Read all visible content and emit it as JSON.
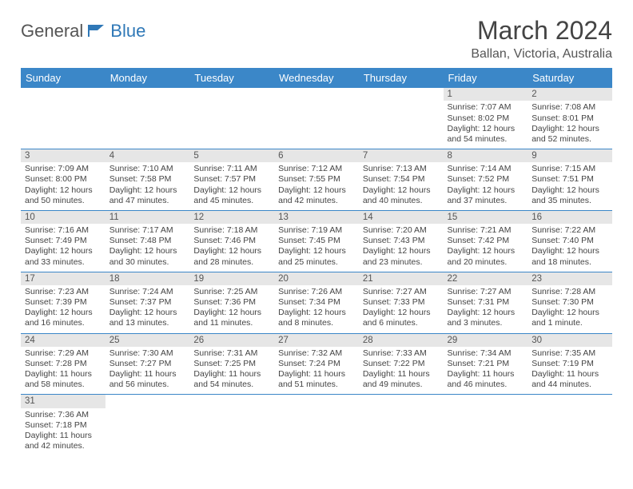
{
  "logo": {
    "word1": "General",
    "word2": "Blue"
  },
  "header": {
    "month_title": "March 2024",
    "location": "Ballan, Victoria, Australia"
  },
  "colors": {
    "header_bg": "#3b87c8",
    "header_fg": "#ffffff",
    "daynum_bg": "#e6e6e6",
    "rule": "#3b87c8",
    "logo_accent": "#2f78b7",
    "text": "#444444"
  },
  "typography": {
    "title_fontsize": 32,
    "location_fontsize": 16,
    "th_fontsize": 13,
    "cell_fontsize": 10.5
  },
  "day_headers": [
    "Sunday",
    "Monday",
    "Tuesday",
    "Wednesday",
    "Thursday",
    "Friday",
    "Saturday"
  ],
  "weeks": [
    [
      null,
      null,
      null,
      null,
      null,
      {
        "n": "1",
        "sr": "Sunrise: 7:07 AM",
        "ss": "Sunset: 8:02 PM",
        "dl": "Daylight: 12 hours and 54 minutes."
      },
      {
        "n": "2",
        "sr": "Sunrise: 7:08 AM",
        "ss": "Sunset: 8:01 PM",
        "dl": "Daylight: 12 hours and 52 minutes."
      }
    ],
    [
      {
        "n": "3",
        "sr": "Sunrise: 7:09 AM",
        "ss": "Sunset: 8:00 PM",
        "dl": "Daylight: 12 hours and 50 minutes."
      },
      {
        "n": "4",
        "sr": "Sunrise: 7:10 AM",
        "ss": "Sunset: 7:58 PM",
        "dl": "Daylight: 12 hours and 47 minutes."
      },
      {
        "n": "5",
        "sr": "Sunrise: 7:11 AM",
        "ss": "Sunset: 7:57 PM",
        "dl": "Daylight: 12 hours and 45 minutes."
      },
      {
        "n": "6",
        "sr": "Sunrise: 7:12 AM",
        "ss": "Sunset: 7:55 PM",
        "dl": "Daylight: 12 hours and 42 minutes."
      },
      {
        "n": "7",
        "sr": "Sunrise: 7:13 AM",
        "ss": "Sunset: 7:54 PM",
        "dl": "Daylight: 12 hours and 40 minutes."
      },
      {
        "n": "8",
        "sr": "Sunrise: 7:14 AM",
        "ss": "Sunset: 7:52 PM",
        "dl": "Daylight: 12 hours and 37 minutes."
      },
      {
        "n": "9",
        "sr": "Sunrise: 7:15 AM",
        "ss": "Sunset: 7:51 PM",
        "dl": "Daylight: 12 hours and 35 minutes."
      }
    ],
    [
      {
        "n": "10",
        "sr": "Sunrise: 7:16 AM",
        "ss": "Sunset: 7:49 PM",
        "dl": "Daylight: 12 hours and 33 minutes."
      },
      {
        "n": "11",
        "sr": "Sunrise: 7:17 AM",
        "ss": "Sunset: 7:48 PM",
        "dl": "Daylight: 12 hours and 30 minutes."
      },
      {
        "n": "12",
        "sr": "Sunrise: 7:18 AM",
        "ss": "Sunset: 7:46 PM",
        "dl": "Daylight: 12 hours and 28 minutes."
      },
      {
        "n": "13",
        "sr": "Sunrise: 7:19 AM",
        "ss": "Sunset: 7:45 PM",
        "dl": "Daylight: 12 hours and 25 minutes."
      },
      {
        "n": "14",
        "sr": "Sunrise: 7:20 AM",
        "ss": "Sunset: 7:43 PM",
        "dl": "Daylight: 12 hours and 23 minutes."
      },
      {
        "n": "15",
        "sr": "Sunrise: 7:21 AM",
        "ss": "Sunset: 7:42 PM",
        "dl": "Daylight: 12 hours and 20 minutes."
      },
      {
        "n": "16",
        "sr": "Sunrise: 7:22 AM",
        "ss": "Sunset: 7:40 PM",
        "dl": "Daylight: 12 hours and 18 minutes."
      }
    ],
    [
      {
        "n": "17",
        "sr": "Sunrise: 7:23 AM",
        "ss": "Sunset: 7:39 PM",
        "dl": "Daylight: 12 hours and 16 minutes."
      },
      {
        "n": "18",
        "sr": "Sunrise: 7:24 AM",
        "ss": "Sunset: 7:37 PM",
        "dl": "Daylight: 12 hours and 13 minutes."
      },
      {
        "n": "19",
        "sr": "Sunrise: 7:25 AM",
        "ss": "Sunset: 7:36 PM",
        "dl": "Daylight: 12 hours and 11 minutes."
      },
      {
        "n": "20",
        "sr": "Sunrise: 7:26 AM",
        "ss": "Sunset: 7:34 PM",
        "dl": "Daylight: 12 hours and 8 minutes."
      },
      {
        "n": "21",
        "sr": "Sunrise: 7:27 AM",
        "ss": "Sunset: 7:33 PM",
        "dl": "Daylight: 12 hours and 6 minutes."
      },
      {
        "n": "22",
        "sr": "Sunrise: 7:27 AM",
        "ss": "Sunset: 7:31 PM",
        "dl": "Daylight: 12 hours and 3 minutes."
      },
      {
        "n": "23",
        "sr": "Sunrise: 7:28 AM",
        "ss": "Sunset: 7:30 PM",
        "dl": "Daylight: 12 hours and 1 minute."
      }
    ],
    [
      {
        "n": "24",
        "sr": "Sunrise: 7:29 AM",
        "ss": "Sunset: 7:28 PM",
        "dl": "Daylight: 11 hours and 58 minutes."
      },
      {
        "n": "25",
        "sr": "Sunrise: 7:30 AM",
        "ss": "Sunset: 7:27 PM",
        "dl": "Daylight: 11 hours and 56 minutes."
      },
      {
        "n": "26",
        "sr": "Sunrise: 7:31 AM",
        "ss": "Sunset: 7:25 PM",
        "dl": "Daylight: 11 hours and 54 minutes."
      },
      {
        "n": "27",
        "sr": "Sunrise: 7:32 AM",
        "ss": "Sunset: 7:24 PM",
        "dl": "Daylight: 11 hours and 51 minutes."
      },
      {
        "n": "28",
        "sr": "Sunrise: 7:33 AM",
        "ss": "Sunset: 7:22 PM",
        "dl": "Daylight: 11 hours and 49 minutes."
      },
      {
        "n": "29",
        "sr": "Sunrise: 7:34 AM",
        "ss": "Sunset: 7:21 PM",
        "dl": "Daylight: 11 hours and 46 minutes."
      },
      {
        "n": "30",
        "sr": "Sunrise: 7:35 AM",
        "ss": "Sunset: 7:19 PM",
        "dl": "Daylight: 11 hours and 44 minutes."
      }
    ],
    [
      {
        "n": "31",
        "sr": "Sunrise: 7:36 AM",
        "ss": "Sunset: 7:18 PM",
        "dl": "Daylight: 11 hours and 42 minutes."
      },
      null,
      null,
      null,
      null,
      null,
      null
    ]
  ]
}
